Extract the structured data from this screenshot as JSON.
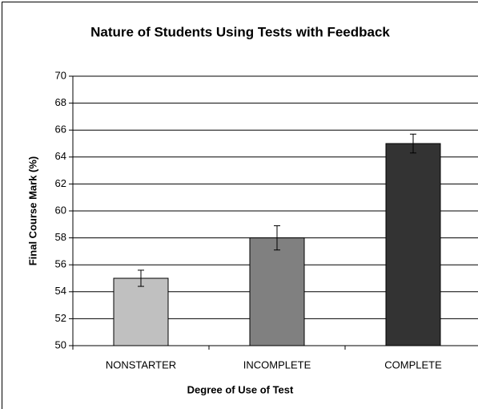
{
  "chart_data": {
    "type": "bar",
    "title": "Nature of Students Using Tests with Feedback",
    "xlabel": "Degree of Use of Test",
    "ylabel": "Final Course Mark (%)",
    "categories": [
      "NONSTARTER",
      "INCOMPLETE",
      "COMPLETE"
    ],
    "values": [
      55,
      58,
      65
    ],
    "errors": [
      0.6,
      0.9,
      0.7
    ],
    "colors": [
      "#c0c0c0",
      "#808080",
      "#333333"
    ],
    "ylim": [
      50,
      70
    ],
    "yticks": [
      50,
      52,
      54,
      56,
      58,
      60,
      62,
      64,
      66,
      68,
      70
    ],
    "grid": true
  }
}
